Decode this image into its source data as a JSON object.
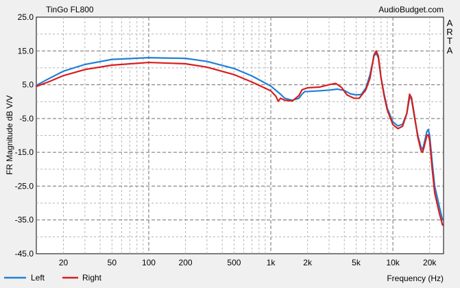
{
  "chart_data": {
    "type": "line",
    "title": "TinGo FL800",
    "source": "AudioBudget.com",
    "side_label": [
      "A",
      "R",
      "T",
      "A"
    ],
    "xlabel": "Frequency (Hz)",
    "ylabel": "FR Magnitude dB V/V",
    "x_scale": "log",
    "xlim": [
      12,
      26000
    ],
    "ylim": [
      -45,
      25
    ],
    "grid": true,
    "legend_position": "bottom-left",
    "y_ticks": [
      "25.0",
      "15.0",
      "5.0",
      "-5.0",
      "-15.0",
      "-25.0",
      "-35.0",
      "-45.0"
    ],
    "x_ticks": [
      {
        "value": 20,
        "label": "20"
      },
      {
        "value": 50,
        "label": "50"
      },
      {
        "value": 100,
        "label": "100"
      },
      {
        "value": 200,
        "label": "200"
      },
      {
        "value": 500,
        "label": "500"
      },
      {
        "value": 1000,
        "label": "1k"
      },
      {
        "value": 2000,
        "label": "2k"
      },
      {
        "value": 5000,
        "label": "5k"
      },
      {
        "value": 10000,
        "label": "10k"
      },
      {
        "value": 20000,
        "label": "20k"
      }
    ],
    "series": [
      {
        "name": "Left",
        "color": "#1f7fd6",
        "points": [
          [
            12,
            4.8
          ],
          [
            15,
            6.7
          ],
          [
            20,
            9.0
          ],
          [
            30,
            11.0
          ],
          [
            50,
            12.5
          ],
          [
            100,
            13.0
          ],
          [
            200,
            12.8
          ],
          [
            300,
            11.9
          ],
          [
            500,
            9.8
          ],
          [
            700,
            7.6
          ],
          [
            1000,
            4.6
          ],
          [
            1200,
            2.2
          ],
          [
            1300,
            1.0
          ],
          [
            1500,
            0.4
          ],
          [
            1700,
            1.0
          ],
          [
            1800,
            2.2
          ],
          [
            1900,
            3.0
          ],
          [
            2000,
            3.0
          ],
          [
            2500,
            3.2
          ],
          [
            3000,
            3.4
          ],
          [
            3500,
            3.7
          ],
          [
            4000,
            3.3
          ],
          [
            4500,
            2.3
          ],
          [
            5000,
            2.0
          ],
          [
            5500,
            2.1
          ],
          [
            6000,
            4.0
          ],
          [
            6500,
            8.0
          ],
          [
            7000,
            13.5
          ],
          [
            7300,
            14.3
          ],
          [
            7600,
            13.0
          ],
          [
            8000,
            7.0
          ],
          [
            8500,
            2.0
          ],
          [
            9000,
            -2.0
          ],
          [
            10000,
            -6.0
          ],
          [
            11000,
            -7.2
          ],
          [
            12000,
            -6.7
          ],
          [
            13000,
            -3.5
          ],
          [
            13700,
            1.2
          ],
          [
            14200,
            0.8
          ],
          [
            15000,
            -4.5
          ],
          [
            16000,
            -10.0
          ],
          [
            17000,
            -13.5
          ],
          [
            17500,
            -14.2
          ],
          [
            18000,
            -12.5
          ],
          [
            19000,
            -8.8
          ],
          [
            19500,
            -8.2
          ],
          [
            20000,
            -10.0
          ],
          [
            21000,
            -18.0
          ],
          [
            22000,
            -25.0
          ],
          [
            24000,
            -31.0
          ],
          [
            25500,
            -35.0
          ]
        ]
      },
      {
        "name": "Right",
        "color": "#d81d1d",
        "points": [
          [
            12,
            4.5
          ],
          [
            15,
            5.8
          ],
          [
            20,
            7.7
          ],
          [
            30,
            9.5
          ],
          [
            50,
            10.8
          ],
          [
            100,
            11.6
          ],
          [
            200,
            11.2
          ],
          [
            300,
            10.2
          ],
          [
            500,
            8.0
          ],
          [
            700,
            5.8
          ],
          [
            1000,
            3.2
          ],
          [
            1100,
            1.6
          ],
          [
            1150,
            0.1
          ],
          [
            1200,
            1.0
          ],
          [
            1300,
            0.4
          ],
          [
            1500,
            0.2
          ],
          [
            1700,
            1.8
          ],
          [
            1800,
            3.5
          ],
          [
            2000,
            4.1
          ],
          [
            2500,
            4.3
          ],
          [
            3000,
            5.0
          ],
          [
            3400,
            5.4
          ],
          [
            3800,
            4.2
          ],
          [
            4200,
            2.0
          ],
          [
            4800,
            1.0
          ],
          [
            5300,
            1.0
          ],
          [
            6000,
            3.5
          ],
          [
            6500,
            7.0
          ],
          [
            7000,
            13.8
          ],
          [
            7300,
            15.0
          ],
          [
            7600,
            13.5
          ],
          [
            8000,
            7.0
          ],
          [
            8500,
            1.5
          ],
          [
            9000,
            -2.5
          ],
          [
            10000,
            -6.8
          ],
          [
            11000,
            -8.0
          ],
          [
            12000,
            -7.3
          ],
          [
            13000,
            -3.5
          ],
          [
            13700,
            2.2
          ],
          [
            14200,
            1.2
          ],
          [
            15000,
            -4.0
          ],
          [
            16000,
            -10.5
          ],
          [
            17000,
            -14.5
          ],
          [
            17500,
            -15.0
          ],
          [
            18000,
            -13.5
          ],
          [
            19000,
            -10.0
          ],
          [
            19500,
            -9.8
          ],
          [
            20000,
            -11.5
          ],
          [
            21000,
            -20.0
          ],
          [
            22000,
            -27.0
          ],
          [
            24000,
            -33.0
          ],
          [
            25500,
            -36.5
          ]
        ]
      }
    ]
  }
}
